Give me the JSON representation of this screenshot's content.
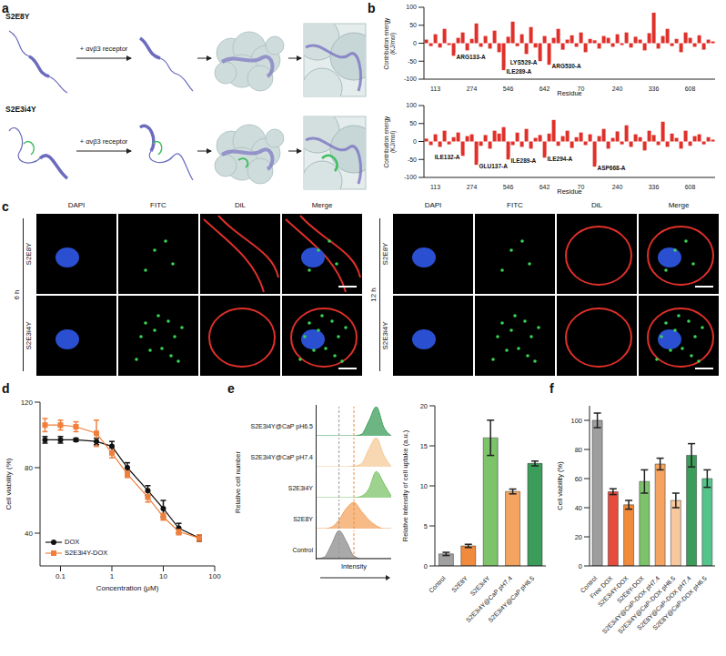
{
  "panel_letters": [
    "a",
    "b",
    "c",
    "d",
    "e",
    "f"
  ],
  "a": {
    "rows": [
      "S2E8Y",
      "S2E3i4Y"
    ],
    "reagent": "+ αvβ3 receptor"
  },
  "c": {
    "channels": [
      "DAPI",
      "FITC",
      "DiL",
      "Merge"
    ],
    "groups": [
      {
        "time": "6 h",
        "rows": [
          "S2E8Y",
          "S2E3i4Y"
        ]
      },
      {
        "time": "12 h",
        "rows": [
          "S2E8Y",
          "S2E3i4Y"
        ]
      }
    ]
  },
  "chart_data": [
    {
      "type": "bar",
      "x_label": "Residue",
      "y_label": "Contribution energy (KJ/mol)",
      "categories": [
        null,
        null,
        "113",
        null,
        null,
        null,
        null,
        null,
        null,
        null,
        "274",
        null,
        null,
        null,
        null,
        null,
        null,
        null,
        "546",
        null,
        null,
        null,
        null,
        null,
        null,
        null,
        "642",
        null,
        null,
        null,
        null,
        null,
        null,
        null,
        "70",
        null,
        null,
        null,
        null,
        null,
        null,
        null,
        "240",
        null,
        null,
        null,
        null,
        null,
        null,
        null,
        "336",
        null,
        null,
        null,
        null,
        null,
        null,
        null,
        "608",
        null,
        null,
        null,
        null,
        null
      ],
      "values": [
        10,
        -8,
        25,
        -12,
        40,
        -5,
        -35,
        15,
        30,
        -20,
        12,
        55,
        -10,
        20,
        -15,
        35,
        -25,
        -75,
        18,
        60,
        -8,
        25,
        -30,
        45,
        -12,
        -50,
        20,
        -60,
        15,
        40,
        -18,
        10,
        22,
        -10,
        30,
        -25,
        12,
        8,
        -15,
        20,
        15,
        -10,
        25,
        -5,
        30,
        -12,
        18,
        10,
        -20,
        28,
        85,
        -15,
        20,
        40,
        -8,
        12,
        -25,
        30,
        15,
        -10,
        22,
        -18,
        10,
        5
      ],
      "color": "#e0302a",
      "ylim": [
        -100,
        100
      ],
      "yticks": [
        -100,
        -50,
        0,
        50,
        100
      ],
      "annotations": [
        {
          "text": "ARG133-A",
          "index": 6
        },
        {
          "text": "ILE289-A",
          "index": 17
        },
        {
          "text": "LYS529-A",
          "index": 25
        },
        {
          "text": "ARG530-A",
          "index": 27
        }
      ]
    },
    {
      "type": "bar",
      "x_label": "Residue",
      "y_label": "Contribution energy (KJ/mol)",
      "categories": [
        null,
        null,
        "113",
        null,
        null,
        null,
        null,
        null,
        null,
        null,
        "274",
        null,
        null,
        null,
        null,
        null,
        null,
        null,
        "546",
        null,
        null,
        null,
        null,
        null,
        null,
        null,
        "642",
        null,
        null,
        null,
        null,
        null,
        null,
        null,
        "70",
        null,
        null,
        null,
        null,
        null,
        null,
        null,
        "240",
        null,
        null,
        null,
        null,
        null,
        null,
        null,
        "336",
        null,
        null,
        null,
        null,
        null,
        null,
        null,
        "608",
        null,
        null,
        null,
        null,
        null
      ],
      "values": [
        8,
        -10,
        20,
        -15,
        30,
        -8,
        12,
        25,
        -40,
        15,
        20,
        -65,
        -12,
        18,
        -20,
        30,
        22,
        40,
        -50,
        -10,
        25,
        -15,
        35,
        -20,
        10,
        18,
        -45,
        22,
        60,
        -12,
        15,
        30,
        -18,
        12,
        25,
        -10,
        20,
        -70,
        15,
        35,
        -20,
        10,
        28,
        -8,
        45,
        -15,
        20,
        12,
        -25,
        30,
        18,
        -10,
        55,
        -15,
        22,
        10,
        -20,
        30,
        -12,
        15,
        20,
        -8,
        12,
        5
      ],
      "color": "#e0302a",
      "ylim": [
        -100,
        100
      ],
      "yticks": [
        -100,
        -50,
        0,
        50,
        100
      ],
      "annotations": [
        {
          "text": "ILE132-A",
          "index": 8
        },
        {
          "text": "GLU137-A",
          "index": 11
        },
        {
          "text": "ILE289-A",
          "index": 18
        },
        {
          "text": "ILE294-A",
          "index": 26
        },
        {
          "text": "ASP668-A",
          "index": 37
        }
      ]
    },
    {
      "type": "line",
      "x_label": "Concentration (μM)",
      "y_label": "Cell viability (%)",
      "log": "x",
      "x": [
        0.05,
        0.1,
        0.2,
        0.5,
        1,
        2,
        5,
        10,
        20,
        50
      ],
      "xlim": [
        0.04,
        100
      ],
      "xticks": [
        0.1,
        1,
        10,
        100
      ],
      "ylim": [
        20,
        120
      ],
      "yticks": [
        40,
        80,
        120
      ],
      "legend": "lower left",
      "series": [
        {
          "name": "DOX",
          "color": "#111111",
          "marker": "circle",
          "values": [
            97,
            97,
            97,
            96,
            93,
            80,
            66,
            55,
            43,
            37
          ],
          "errors": [
            2,
            2,
            1,
            2,
            3,
            3,
            3,
            5,
            3,
            2
          ]
        },
        {
          "name": "S2E3i4Y-DOX",
          "color": "#f07f3c",
          "marker": "square",
          "values": [
            106,
            106,
            105,
            101,
            89,
            76,
            62,
            50,
            41,
            37
          ],
          "errors": [
            4,
            3,
            3,
            8,
            3,
            2,
            3,
            2,
            2,
            2
          ]
        }
      ]
    },
    {
      "type": "area",
      "x_label": "Intensity",
      "y_label": "Relative cell number",
      "tick_labels": false,
      "x": [
        0,
        1,
        2,
        3,
        4,
        5,
        6,
        7,
        8,
        9,
        10
      ],
      "xlim": [
        0,
        10
      ],
      "ylim": [
        0,
        1
      ],
      "reference_lines": [
        {
          "x": 3,
          "color": "#999999"
        },
        {
          "x": 5,
          "color": "#f08a3c"
        }
      ],
      "series": [
        {
          "name": "S2E3i4Y@CaP pH6.5",
          "color": "#3c9d5a",
          "values": [
            0,
            0,
            0,
            0,
            0,
            0,
            0.05,
            0.5,
            1,
            0.3,
            0
          ]
        },
        {
          "name": "S2E3i4Y@CaP pH7.4",
          "color": "#f5c99a",
          "values": [
            0,
            0,
            0,
            0,
            0,
            0.02,
            0.1,
            0.6,
            1,
            0.4,
            0
          ]
        },
        {
          "name": "S2E3i4Y",
          "color": "#7cc36a",
          "values": [
            0,
            0,
            0,
            0,
            0,
            0,
            0.05,
            0.3,
            0.9,
            0.5,
            0.05
          ]
        },
        {
          "name": "S2E8Y",
          "color": "#f4a460",
          "values": [
            0,
            0,
            0.05,
            0.3,
            0.7,
            0.9,
            0.6,
            0.3,
            0.1,
            0,
            0
          ]
        },
        {
          "name": "Control",
          "color": "#8c8c8c",
          "values": [
            0,
            0.05,
            0.5,
            1,
            0.6,
            0.1,
            0,
            0,
            0,
            0,
            0
          ]
        }
      ]
    },
    {
      "type": "bar",
      "y_label": "Relative intensity of cell uptake (a.u.)",
      "categories": [
        "Control",
        "S2E8Y",
        "S2E3i4Y",
        "S2E3i4Y@CaP pH7.4",
        "S2E3i4Y@CaP pH6.5"
      ],
      "values": [
        1.5,
        2.5,
        16,
        9.3,
        12.8
      ],
      "errors": [
        0.2,
        0.2,
        2.2,
        0.3,
        0.3
      ],
      "colors": [
        "#a0a0a0",
        "#f08a3c",
        "#7cc36a",
        "#f4a460",
        "#3c9d5a"
      ],
      "ylim": [
        0,
        20
      ],
      "yticks": [
        0,
        5,
        10,
        15,
        20
      ]
    },
    {
      "type": "bar",
      "y_label": "Cell viability (%)",
      "categories": [
        "Control",
        "Free DOX",
        "S2E3i4Y-DOX",
        "S2E8Y-DOX",
        "S2E3i4Y@CaP-DOX pH7.4",
        "S2E3i4Y@CaP-DOX pH6.5",
        "S2E8Y@CaP-DOX pH7.4",
        "S2E8Y@CaP-DOX pH6.5"
      ],
      "values": [
        100,
        51,
        42,
        58,
        70,
        45,
        76,
        60
      ],
      "errors": [
        5,
        2,
        3,
        8,
        4,
        5,
        8,
        6
      ],
      "colors": [
        "#9e9e9e",
        "#e74c3c",
        "#f08a3c",
        "#7cc36a",
        "#f4a460",
        "#f7c79e",
        "#3c9d5a",
        "#55c48a"
      ],
      "ylim": [
        0,
        110
      ],
      "yticks": [
        0,
        20,
        40,
        60,
        80,
        100
      ]
    }
  ]
}
